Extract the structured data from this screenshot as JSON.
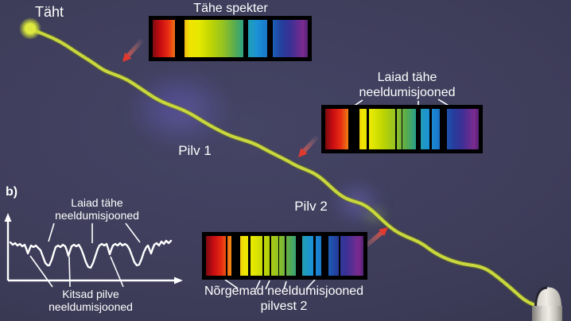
{
  "palette": {
    "background": "#3c3b57",
    "text": "#ffffff",
    "beam": "#c6d63c",
    "arrow_red": "#e63529",
    "spectrum_black": "#000000",
    "cloud_blue": "#6a64b4"
  },
  "star": {
    "label": "Täht"
  },
  "clouds": {
    "cloud1_label": "Pilv 1",
    "cloud2_label": "Pilv 2"
  },
  "spectra": [
    {
      "title": "Tähe spekter",
      "absorption_lines": [
        {
          "pos": 14.6,
          "width": 6.1
        },
        {
          "pos": 58.4,
          "width": 2.9
        },
        {
          "pos": 73.6,
          "width": 3.7
        }
      ]
    },
    {
      "title": "Laiad tähe\nneeldumisjooned",
      "absorption_lines": [
        {
          "pos": 14.9,
          "width": 7.2
        },
        {
          "pos": 27.2,
          "width": 1.3
        },
        {
          "pos": 45.7,
          "width": 1.0
        },
        {
          "pos": 49.5,
          "width": 1.0
        },
        {
          "pos": 58.9,
          "width": 3.5
        },
        {
          "pos": 68.0,
          "width": 1.2
        },
        {
          "pos": 74.7,
          "width": 4.7
        }
      ]
    },
    {
      "title": "Nõrgemad neeldumisjooned\npilvest 2",
      "absorption_lines": [
        {
          "pos": 12.5,
          "width": 1.3
        },
        {
          "pos": 16.2,
          "width": 5.5
        },
        {
          "pos": 27.0,
          "width": 1.4
        },
        {
          "pos": 35.9,
          "width": 0.9
        },
        {
          "pos": 40.5,
          "width": 0.9
        },
        {
          "pos": 45.9,
          "width": 0.8
        },
        {
          "pos": 50.0,
          "width": 0.9
        },
        {
          "pos": 57.0,
          "width": 4.2
        },
        {
          "pos": 68.4,
          "width": 1.3
        },
        {
          "pos": 73.4,
          "width": 4.6
        },
        {
          "pos": 84.4,
          "width": 1.0
        }
      ]
    }
  ],
  "graph": {
    "label": "b)",
    "top_annotation": "Laiad tähe\nneeldumisjooned",
    "bottom_annotation": "Kitsad pilve\nneeldumisjooned"
  }
}
